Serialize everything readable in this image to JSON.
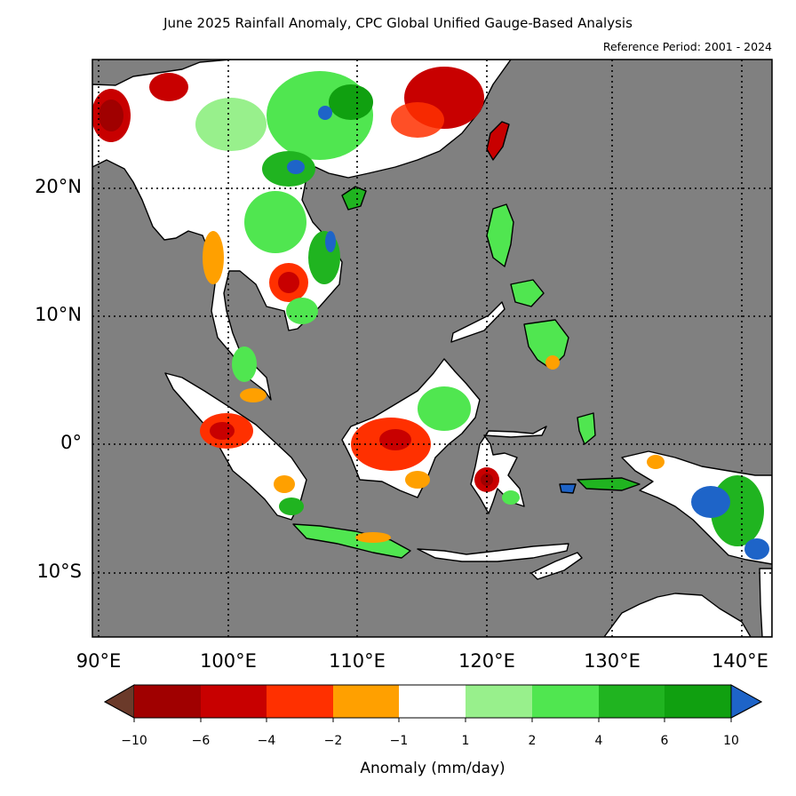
{
  "title": "June 2025 Rainfall Anomaly, CPC Global Unified Gauge-Based Analysis",
  "subtitle": "Reference Period: 2001 - 2024",
  "map": {
    "ocean_color": "#808080",
    "land_normal_color": "#ffffff",
    "lat_labels": [
      "20°N",
      "10°N",
      "0°",
      "10°S"
    ],
    "lon_labels": [
      "90°E",
      "100°E",
      "110°E",
      "120°E",
      "130°E",
      "140°E"
    ],
    "lat_range": [
      -15,
      30
    ],
    "lon_range": [
      89.5,
      142
    ]
  },
  "colorbar": {
    "title": "Anomaly (mm/day)",
    "ticks": [
      "−10",
      "−6",
      "−4",
      "−2",
      "−1",
      "1",
      "2",
      "4",
      "6",
      "10"
    ],
    "colors": {
      "under": "#6b3a2a",
      "bins": [
        "#a00000",
        "#c80000",
        "#ff3000",
        "#ffa000",
        "#ffffff",
        "#98f08c",
        "#50e650",
        "#20b420",
        "#10a010"
      ],
      "over": "#1e64c8"
    }
  }
}
